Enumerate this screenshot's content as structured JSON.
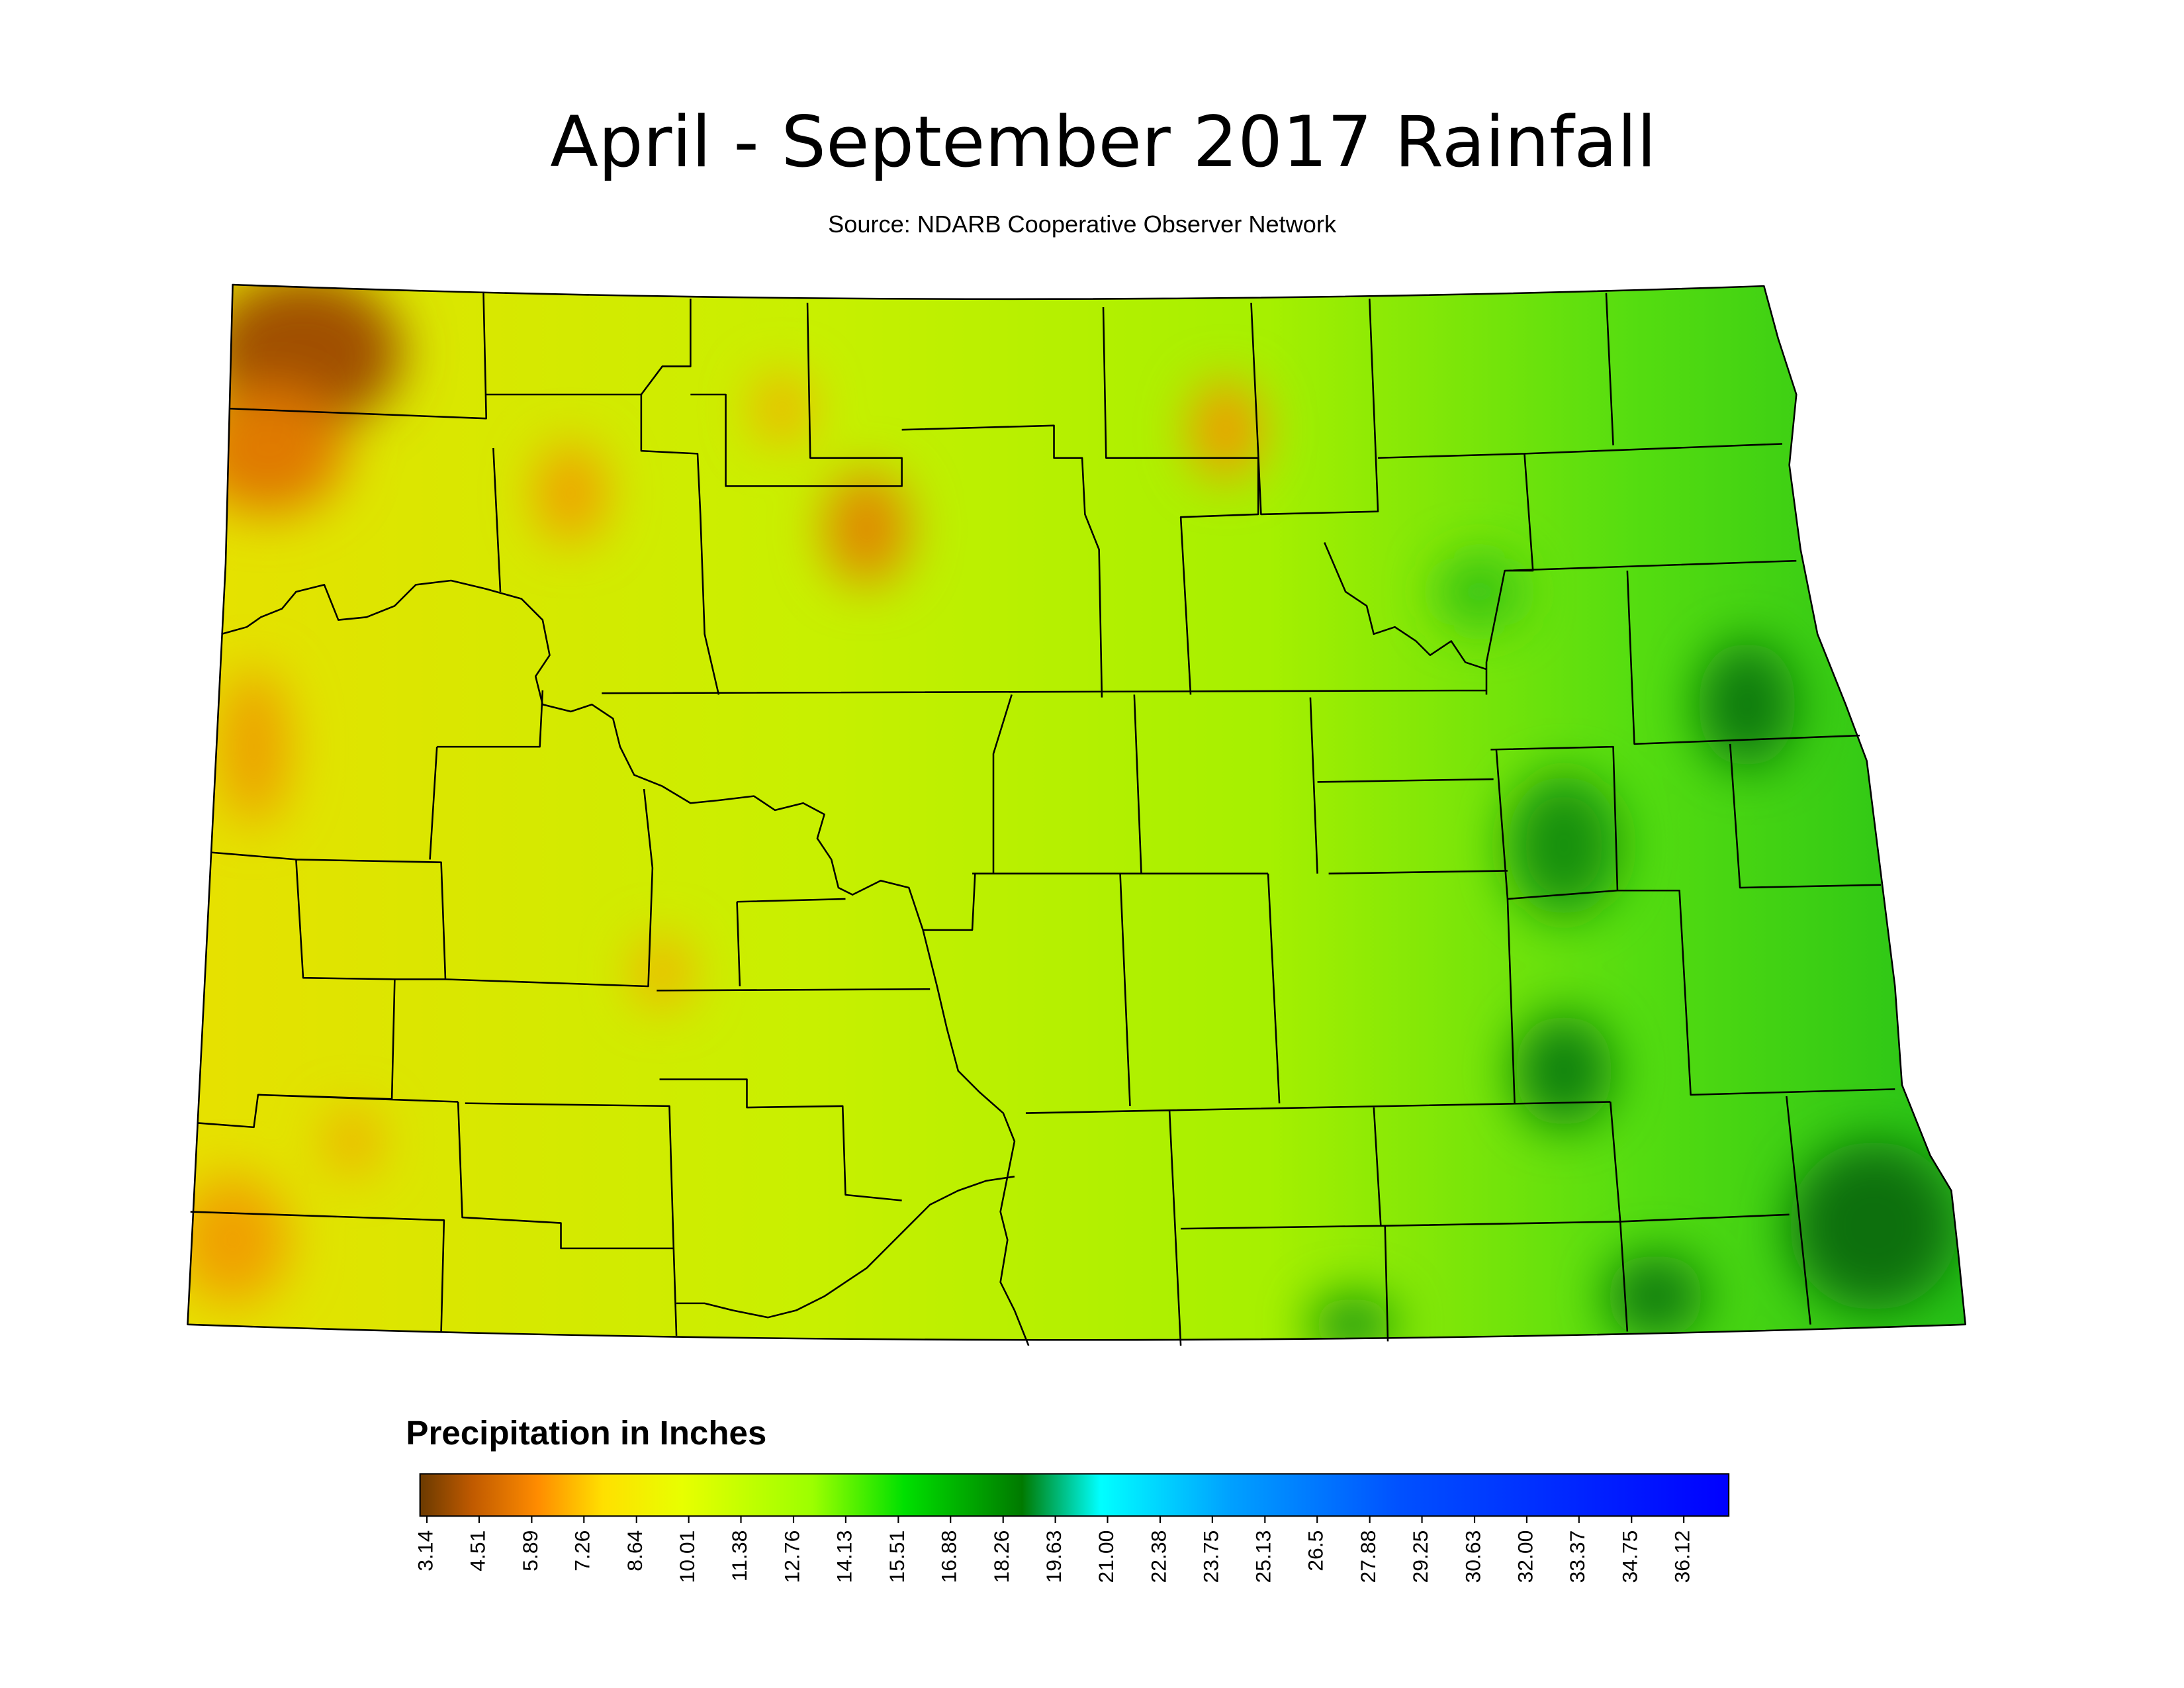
{
  "title": "April - September 2017 Rainfall",
  "subtitle": "Source: NDARB Cooperative Observer Network",
  "legend": {
    "title": "Precipitation in Inches",
    "lim": [
      2.96,
      37.3
    ],
    "ticks": [
      3.14,
      4.51,
      5.89,
      7.26,
      8.64,
      10.01,
      11.38,
      12.76,
      14.13,
      15.51,
      16.88,
      18.26,
      19.63,
      {
        "value": 21,
        "label": "21.00"
      },
      22.38,
      23.75,
      25.13,
      26.5,
      27.88,
      29.25,
      30.63,
      {
        "value": 32,
        "label": "32.00"
      },
      33.37,
      34.75,
      36.12
    ]
  }
}
